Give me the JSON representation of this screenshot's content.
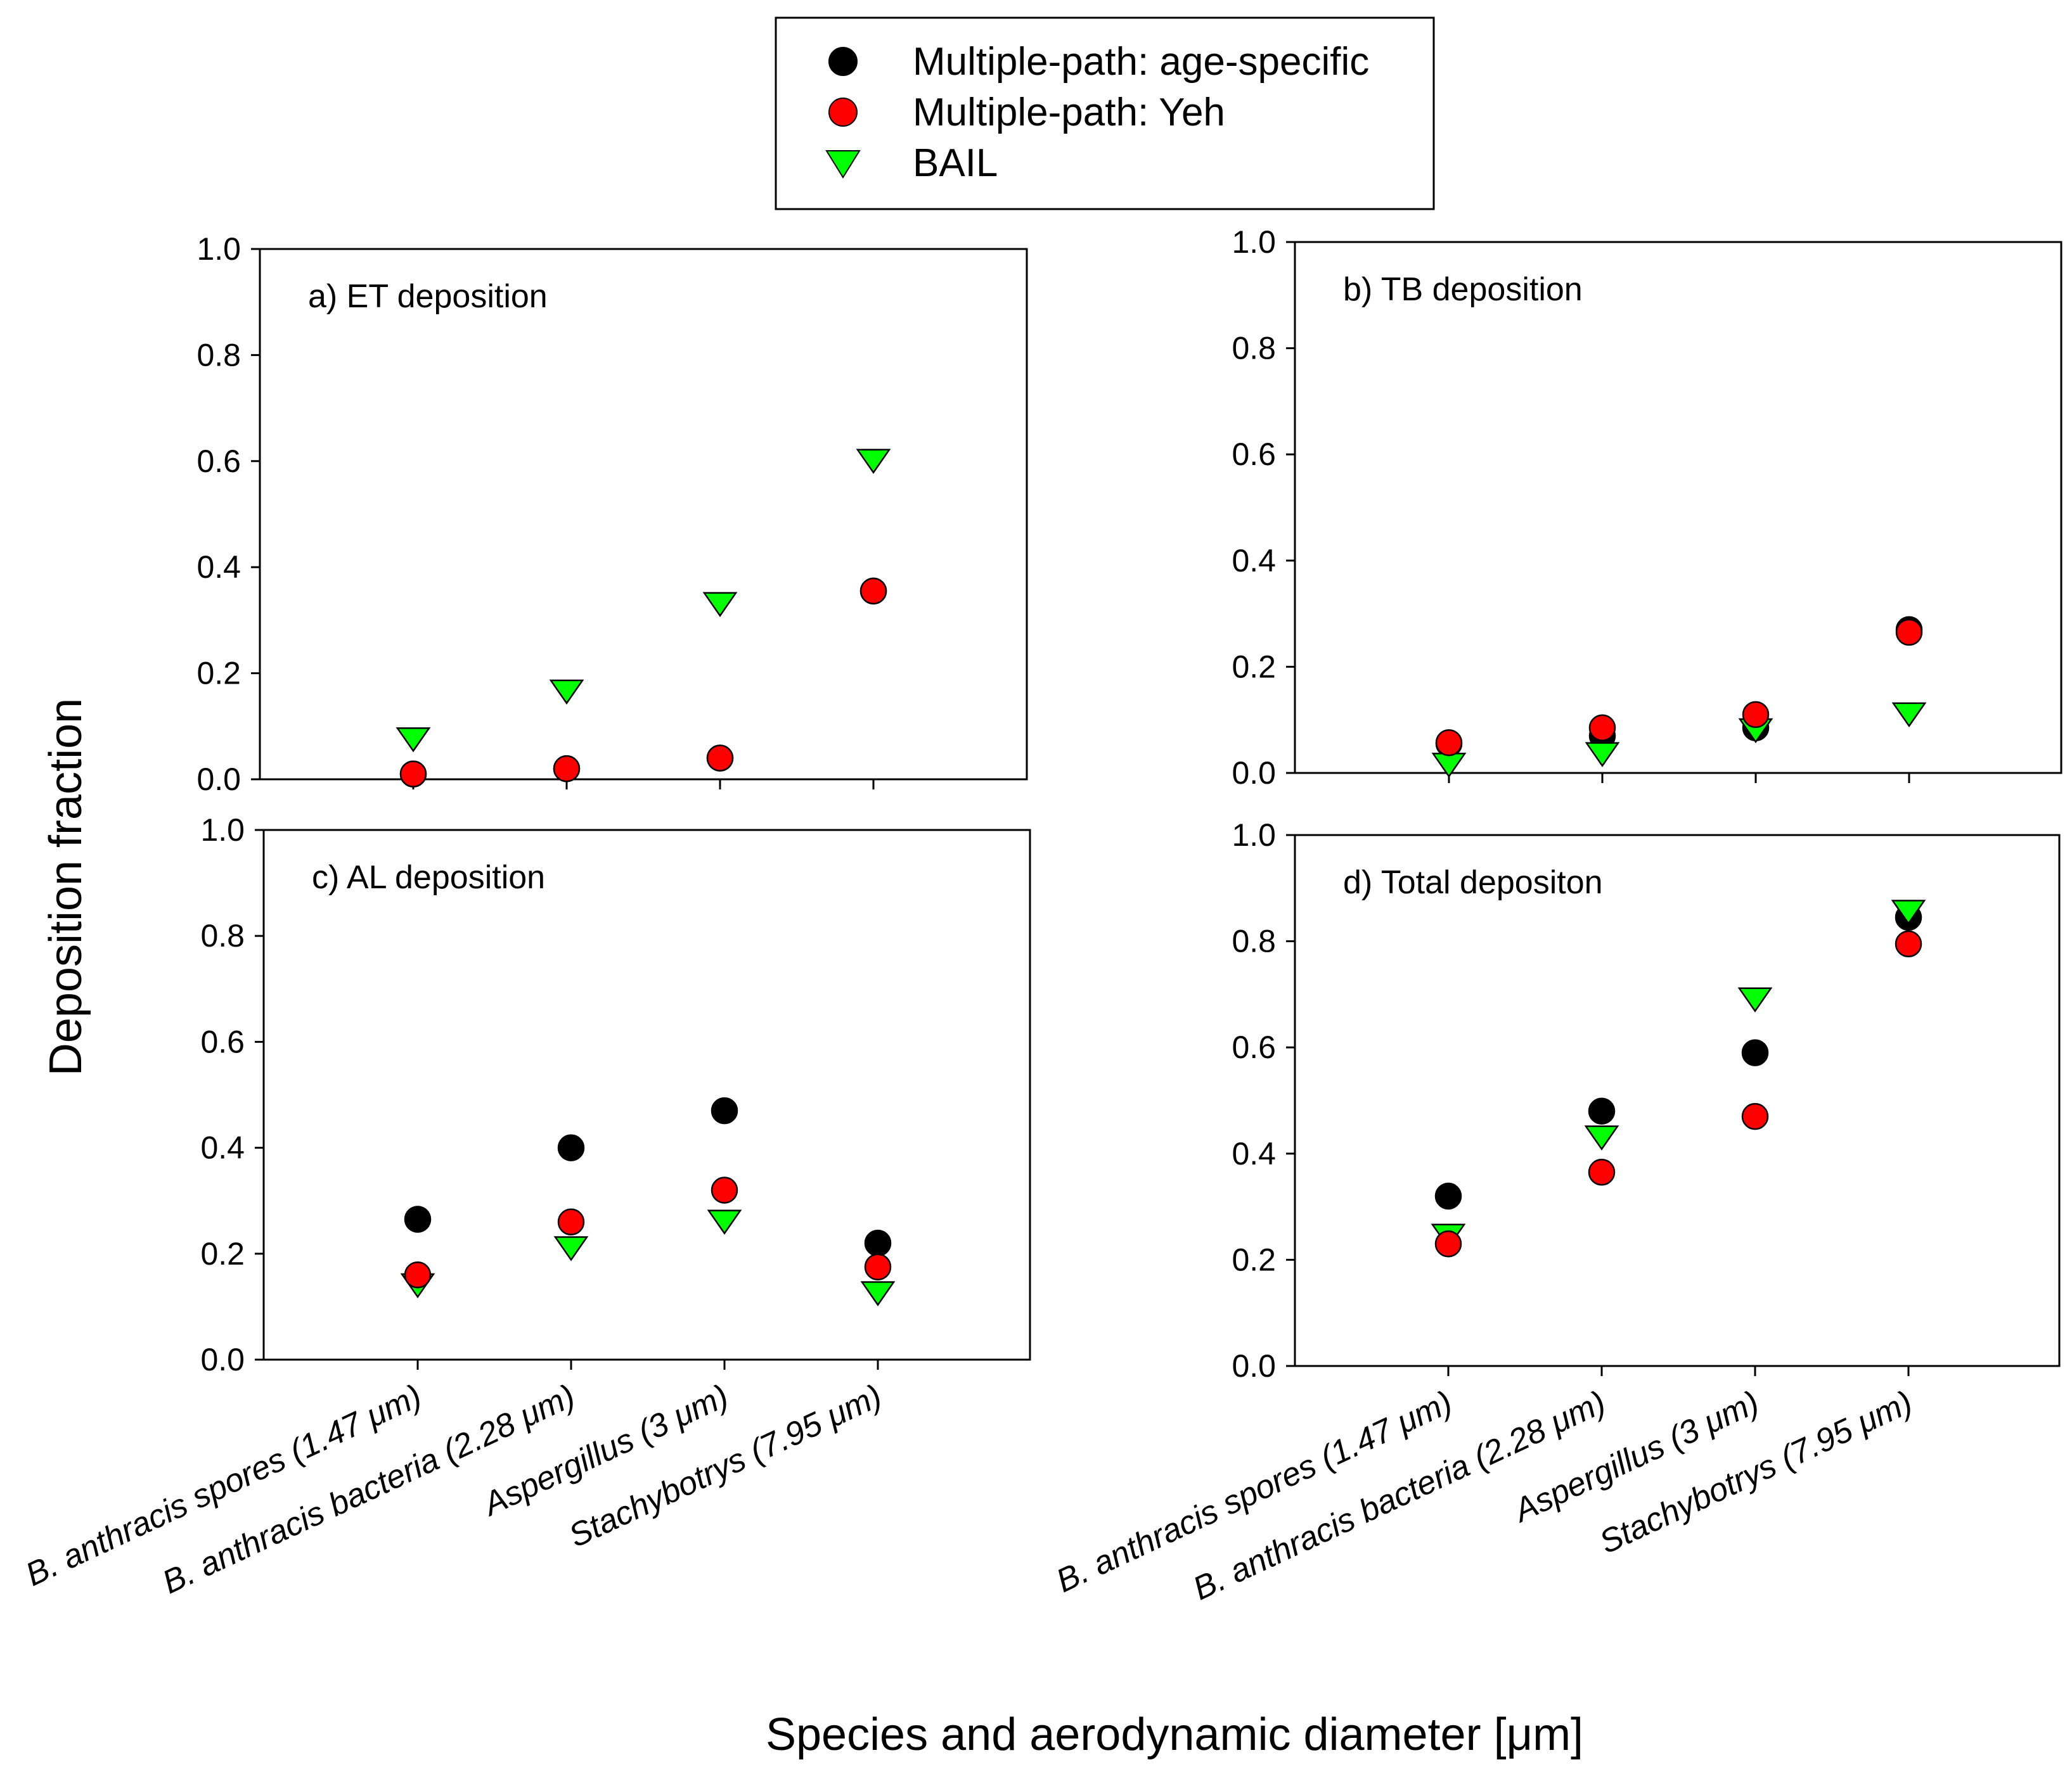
{
  "figure": {
    "ylabel": "Deposition fraction",
    "xlabel": "Species and aerodynamic diameter [μm]"
  },
  "legend": [
    {
      "label": "Multiple-path: age-specific",
      "marker": "circle",
      "color": "#000000"
    },
    {
      "label": "Multiple-path: Yeh",
      "marker": "circle",
      "color": "#ff0000"
    },
    {
      "label": "BAIL",
      "marker": "triangle-down",
      "color": "#00ff00"
    }
  ],
  "chart_data": [
    {
      "type": "scatter",
      "title": "a) ET deposition",
      "categories": [
        "B. anthracis spores (1.47 μm)",
        "B. anthracis bacteria (2.28 μm)",
        "Aspergillus (3 μm)",
        "Stachybotrys (7.95 μm)"
      ],
      "ylim": [
        0,
        1.0
      ],
      "yticks": [
        "0.0",
        "0.2",
        "0.4",
        "0.6",
        "0.8",
        "1.0"
      ],
      "series": [
        {
          "name": "Multiple-path: age-specific",
          "values": [
            0.01,
            0.02,
            0.04,
            0.355
          ]
        },
        {
          "name": "Multiple-path: Yeh",
          "values": [
            0.01,
            0.02,
            0.04,
            0.355
          ]
        },
        {
          "name": "BAIL",
          "values": [
            0.075,
            0.165,
            0.33,
            0.6
          ]
        }
      ]
    },
    {
      "type": "scatter",
      "title": "b) TB deposition",
      "categories": [
        "B. anthracis spores (1.47 μm)",
        "B. anthracis bacteria (2.28 μm)",
        "Aspergillus (3 μm)",
        "Stachybotrys (7.95 μm)"
      ],
      "ylim": [
        0,
        1.0
      ],
      "yticks": [
        "0.0",
        "0.2",
        "0.4",
        "0.6",
        "0.8",
        "1.0"
      ],
      "series": [
        {
          "name": "Multiple-path: age-specific",
          "values": [
            0.055,
            0.07,
            0.085,
            0.27
          ]
        },
        {
          "name": "Multiple-path: Yeh",
          "values": [
            0.057,
            0.085,
            0.11,
            0.265
          ]
        },
        {
          "name": "BAIL",
          "values": [
            0.015,
            0.035,
            0.08,
            0.11
          ]
        }
      ]
    },
    {
      "type": "scatter",
      "title": "c) AL deposition",
      "categories": [
        "B. anthracis spores (1.47 μm)",
        "B. anthracis bacteria (2.28 μm)",
        "Aspergillus (3 μm)",
        "Stachybotrys (7.95 μm)"
      ],
      "ylim": [
        0,
        1.0
      ],
      "yticks": [
        "0.0",
        "0.2",
        "0.4",
        "0.6",
        "0.8",
        "1.0"
      ],
      "series": [
        {
          "name": "Multiple-path: age-specific",
          "values": [
            0.265,
            0.4,
            0.47,
            0.22
          ]
        },
        {
          "name": "Multiple-path: Yeh",
          "values": [
            0.16,
            0.26,
            0.32,
            0.175
          ]
        },
        {
          "name": "BAIL",
          "values": [
            0.14,
            0.21,
            0.26,
            0.125
          ]
        }
      ]
    },
    {
      "type": "scatter",
      "title": "d) Total depositon",
      "categories": [
        "B. anthracis spores (1.47 μm)",
        "B. anthracis bacteria (2.28 μm)",
        "Aspergillus (3 μm)",
        "Stachybotrys (7.95 μm)"
      ],
      "ylim": [
        0,
        1.0
      ],
      "yticks": [
        "0.0",
        "0.2",
        "0.4",
        "0.6",
        "0.8",
        "1.0"
      ],
      "series": [
        {
          "name": "Multiple-path: age-specific",
          "values": [
            0.32,
            0.48,
            0.59,
            0.845
          ]
        },
        {
          "name": "Multiple-path: Yeh",
          "values": [
            0.23,
            0.365,
            0.47,
            0.795
          ]
        },
        {
          "name": "BAIL",
          "values": [
            0.245,
            0.43,
            0.69,
            0.855
          ]
        }
      ]
    }
  ]
}
